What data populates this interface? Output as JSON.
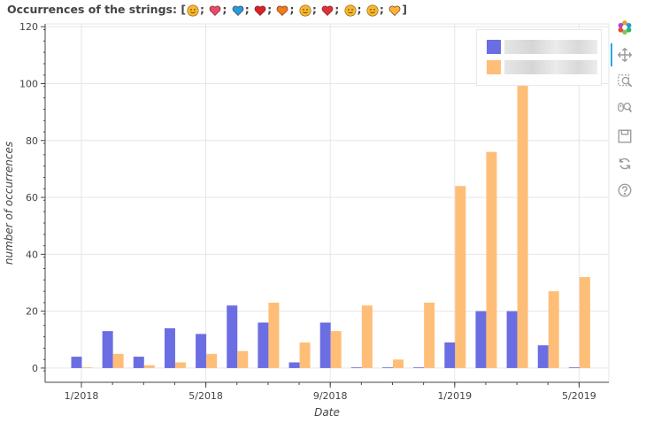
{
  "title": {
    "prefix": "Occurrences of the strings: [",
    "suffix": "]",
    "emoji": [
      {
        "icon": "kissing-face-emoji",
        "color": "#f7b731"
      },
      {
        "icon": "heart-with-arrow-emoji",
        "color": "#e84a6a"
      },
      {
        "icon": "blue-heart-emoji",
        "color": "#1e9fe0"
      },
      {
        "icon": "red-heart-emoji",
        "color": "#d9202b"
      },
      {
        "icon": "orange-heart-emoji",
        "color": "#f07c1a"
      },
      {
        "icon": "face-blowing-kiss-emoji",
        "color": "#f7b731"
      },
      {
        "icon": "kiss-mark-emoji",
        "color": "#e0303c"
      },
      {
        "icon": "smiling-face-emoji",
        "color": "#f7b731"
      },
      {
        "icon": "star-struck-emoji",
        "color": "#f7b731"
      },
      {
        "icon": "smiling-face-with-hearts-emoji",
        "color": "#f7b731"
      }
    ]
  },
  "chart_data": {
    "type": "bar",
    "xlabel": "Date",
    "ylabel": "number of occurrences",
    "x_tick_labels": [
      "1/2018",
      "5/2018",
      "9/2018",
      "1/2019",
      "5/2019"
    ],
    "x_tick_months": [
      "2018-01",
      "2018-05",
      "2018-09",
      "2019-01",
      "2019-05"
    ],
    "categories": [
      "2018-01",
      "2018-02",
      "2018-03",
      "2018-04",
      "2018-05",
      "2018-06",
      "2018-07",
      "2018-08",
      "2018-09",
      "2018-10",
      "2018-11",
      "2018-12",
      "2019-01",
      "2019-02",
      "2019-03",
      "2019-04",
      "2019-05"
    ],
    "series": [
      {
        "name": "",
        "color": "#6b6de3",
        "values": [
          4,
          13,
          4,
          14,
          12,
          22,
          16,
          2,
          16,
          0,
          0,
          0,
          9,
          20,
          20,
          8,
          0
        ]
      },
      {
        "name": "",
        "color": "#ffbe78",
        "values": [
          0,
          5,
          1,
          2,
          5,
          6,
          23,
          9,
          13,
          22,
          3,
          23,
          64,
          76,
          100,
          27,
          32
        ]
      }
    ],
    "ylim": [
      -5,
      121
    ],
    "y_ticks": [
      0,
      20,
      40,
      60,
      80,
      100,
      120
    ],
    "grid": true,
    "legend": "top-right"
  },
  "toolbar": {
    "tools": [
      {
        "name": "bokeh-logo-icon"
      },
      {
        "name": "pan-tool-icon",
        "active": true
      },
      {
        "name": "box-zoom-tool-icon"
      },
      {
        "name": "wheel-zoom-tool-icon"
      },
      {
        "name": "save-tool-icon"
      },
      {
        "name": "reset-tool-icon"
      },
      {
        "name": "help-tool-icon"
      }
    ]
  }
}
